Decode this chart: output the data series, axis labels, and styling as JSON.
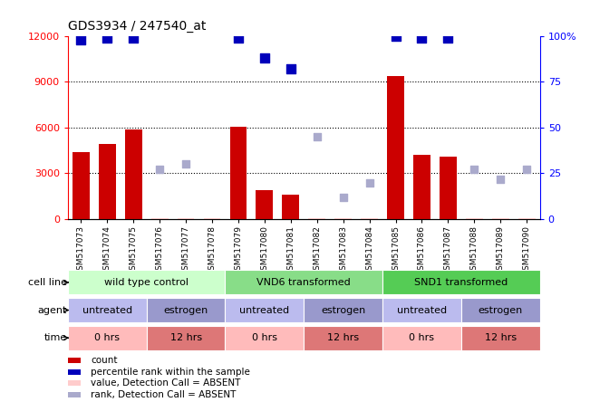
{
  "title": "GDS3934 / 247540_at",
  "samples": [
    "GSM517073",
    "GSM517074",
    "GSM517075",
    "GSM517076",
    "GSM517077",
    "GSM517078",
    "GSM517079",
    "GSM517080",
    "GSM517081",
    "GSM517082",
    "GSM517083",
    "GSM517084",
    "GSM517085",
    "GSM517086",
    "GSM517087",
    "GSM517088",
    "GSM517089",
    "GSM517090"
  ],
  "count_values": [
    4400,
    4900,
    5900,
    50,
    50,
    50,
    6050,
    1900,
    1600,
    50,
    50,
    50,
    9400,
    4200,
    4100,
    50,
    50,
    50
  ],
  "count_absent": [
    false,
    false,
    false,
    true,
    true,
    true,
    false,
    false,
    false,
    true,
    true,
    true,
    false,
    false,
    false,
    true,
    true,
    true
  ],
  "rank_values": [
    98,
    99,
    99,
    null,
    null,
    null,
    99,
    88,
    82,
    null,
    null,
    null,
    100,
    99,
    99,
    null,
    null,
    null
  ],
  "rank_absent_values": [
    null,
    null,
    null,
    27,
    30,
    null,
    null,
    null,
    null,
    45,
    12,
    20,
    null,
    null,
    null,
    27,
    22,
    27
  ],
  "ylim_left": [
    0,
    12000
  ],
  "ylim_right": [
    0,
    100
  ],
  "yticks_left": [
    0,
    3000,
    6000,
    9000,
    12000
  ],
  "yticks_right": [
    0,
    25,
    50,
    75,
    100
  ],
  "ytick_labels_right": [
    "0",
    "25",
    "50",
    "75",
    "100%"
  ],
  "cell_line_groups": [
    {
      "label": "wild type control",
      "start": 0,
      "end": 6,
      "color": "#ccffcc"
    },
    {
      "label": "VND6 transformed",
      "start": 6,
      "end": 12,
      "color": "#88dd88"
    },
    {
      "label": "SND1 transformed",
      "start": 12,
      "end": 18,
      "color": "#55cc55"
    }
  ],
  "agent_groups": [
    {
      "label": "untreated",
      "start": 0,
      "end": 3,
      "color": "#bbbbee"
    },
    {
      "label": "estrogen",
      "start": 3,
      "end": 6,
      "color": "#9999cc"
    },
    {
      "label": "untreated",
      "start": 6,
      "end": 9,
      "color": "#bbbbee"
    },
    {
      "label": "estrogen",
      "start": 9,
      "end": 12,
      "color": "#9999cc"
    },
    {
      "label": "untreated",
      "start": 12,
      "end": 15,
      "color": "#bbbbee"
    },
    {
      "label": "estrogen",
      "start": 15,
      "end": 18,
      "color": "#9999cc"
    }
  ],
  "time_groups": [
    {
      "label": "0 hrs",
      "start": 0,
      "end": 3,
      "color": "#ffbbbb"
    },
    {
      "label": "12 hrs",
      "start": 3,
      "end": 6,
      "color": "#dd7777"
    },
    {
      "label": "0 hrs",
      "start": 6,
      "end": 9,
      "color": "#ffbbbb"
    },
    {
      "label": "12 hrs",
      "start": 9,
      "end": 12,
      "color": "#dd7777"
    },
    {
      "label": "0 hrs",
      "start": 12,
      "end": 15,
      "color": "#ffbbbb"
    },
    {
      "label": "12 hrs",
      "start": 15,
      "end": 18,
      "color": "#dd7777"
    }
  ],
  "bar_color": "#cc0000",
  "rank_color": "#0000bb",
  "absent_bar_color": "#ffcccc",
  "absent_rank_color": "#aaaacc",
  "background_color": "#ffffff"
}
